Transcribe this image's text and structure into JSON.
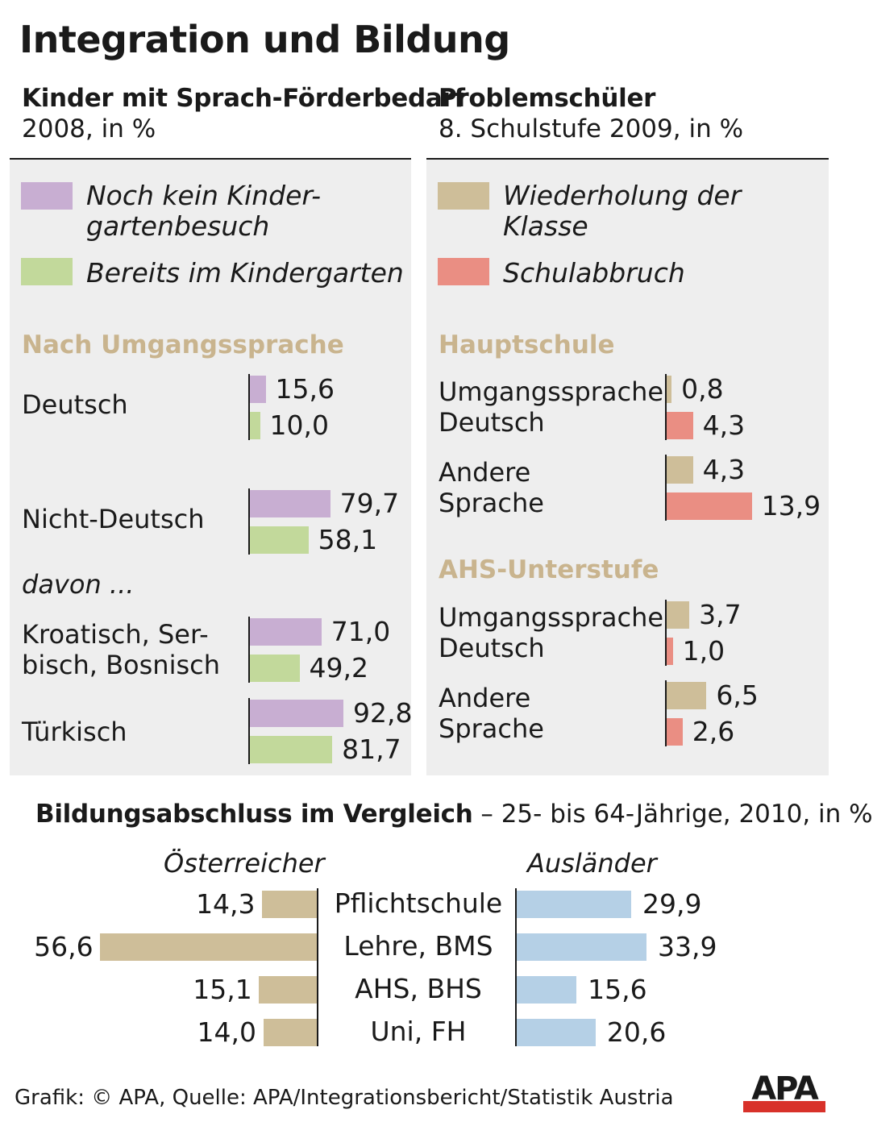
{
  "title": "Integration und Bildung",
  "colors": {
    "purple": "#c8aed2",
    "green": "#c2d99b",
    "tan": "#cebe99",
    "salmon": "#ea8e83",
    "blue": "#b5d0e6",
    "section": "#c9b48e"
  },
  "left_panel": {
    "title": "Kinder mit Sprach-Förderbedarf",
    "subtitle": "2008, in %",
    "legend": [
      "Noch kein Kinder-",
      "gartenbesuch",
      "Bereits im Kindergarten"
    ],
    "section": "Nach Umgangssprache",
    "davon": "davon ..."
  },
  "right_panel": {
    "title": "Problemschüler",
    "subtitle": "8. Schulstufe 2009, in %",
    "legend": [
      "Wiederholung der",
      "Klasse",
      "Schulabbruch"
    ]
  },
  "bottom": {
    "title_bold": "Bildungsabschluss im Vergleich",
    "title_rest": " – 25- bis 64-Jährige, 2010, in %",
    "left_header": "Österreicher",
    "right_header": "Ausländer"
  },
  "footer": "Grafik: © APA, Quelle: APA/Integrationsbericht/Statistik Austria",
  "logo": "APA",
  "chart_data": [
    {
      "type": "bar",
      "title": "Kinder mit Sprach-Förderbedarf",
      "subtitle": "2008, in %",
      "section": "Nach Umgangssprache",
      "categories": [
        "Deutsch",
        "Nicht-Deutsch",
        "Kroatisch, Serbisch, Bosnisch",
        "Türkisch"
      ],
      "category_labels": [
        [
          "Deutsch"
        ],
        [
          "Nicht-Deutsch"
        ],
        [
          "Kroatisch, Ser-",
          "bisch, Bosnisch"
        ],
        [
          "Türkisch"
        ]
      ],
      "series": [
        {
          "name": "Noch kein Kindergartenbesuch",
          "values": [
            15.6,
            79.7,
            71.0,
            92.8
          ]
        },
        {
          "name": "Bereits im Kindergarten",
          "values": [
            10.0,
            58.1,
            49.2,
            81.7
          ]
        }
      ],
      "value_labels": [
        [
          "15,6",
          "79,7",
          "71,0",
          "92,8"
        ],
        [
          "10,0",
          "58,1",
          "49,2",
          "81,7"
        ]
      ],
      "orientation": "horizontal"
    },
    {
      "type": "bar",
      "title": "Problemschüler",
      "subtitle": "8. Schulstufe 2009, in %",
      "groups": [
        {
          "name": "Hauptschule",
          "categories": [
            "Umgangssprache Deutsch",
            "Andere Sprache"
          ],
          "category_labels": [
            [
              "Umgangssprache",
              "Deutsch"
            ],
            [
              "Andere",
              "Sprache"
            ]
          ],
          "series": [
            {
              "name": "Wiederholung der Klasse",
              "values": [
                0.8,
                4.3
              ]
            },
            {
              "name": "Schulabbruch",
              "values": [
                4.3,
                13.9
              ]
            }
          ],
          "value_labels": [
            [
              "0,8",
              "4,3"
            ],
            [
              "4,3",
              "13,9"
            ]
          ]
        },
        {
          "name": "AHS-Unterstufe",
          "categories": [
            "Umgangssprache Deutsch",
            "Andere Sprache"
          ],
          "category_labels": [
            [
              "Umgangssprache",
              "Deutsch"
            ],
            [
              "Andere",
              "Sprache"
            ]
          ],
          "series": [
            {
              "name": "Wiederholung der Klasse",
              "values": [
                3.7,
                6.5
              ]
            },
            {
              "name": "Schulabbruch",
              "values": [
                1.0,
                2.6
              ]
            }
          ],
          "value_labels": [
            [
              "3,7",
              "6,5"
            ],
            [
              "1,0",
              "2,6"
            ]
          ]
        }
      ],
      "orientation": "horizontal"
    },
    {
      "type": "bar",
      "title": "Bildungsabschluss im Vergleich – 25- bis 64-Jährige, 2010, in %",
      "categories": [
        "Pflichtschule",
        "Lehre, BMS",
        "AHS, BHS",
        "Uni, FH"
      ],
      "series": [
        {
          "name": "Österreicher",
          "values": [
            14.3,
            56.6,
            15.1,
            14.0
          ]
        },
        {
          "name": "Ausländer",
          "values": [
            29.9,
            33.9,
            15.6,
            20.6
          ]
        }
      ],
      "value_labels": [
        [
          "14,3",
          "56,6",
          "15,1",
          "14,0"
        ],
        [
          "29,9",
          "33,9",
          "15,6",
          "20,6"
        ]
      ],
      "orientation": "horizontal-butterfly"
    }
  ]
}
